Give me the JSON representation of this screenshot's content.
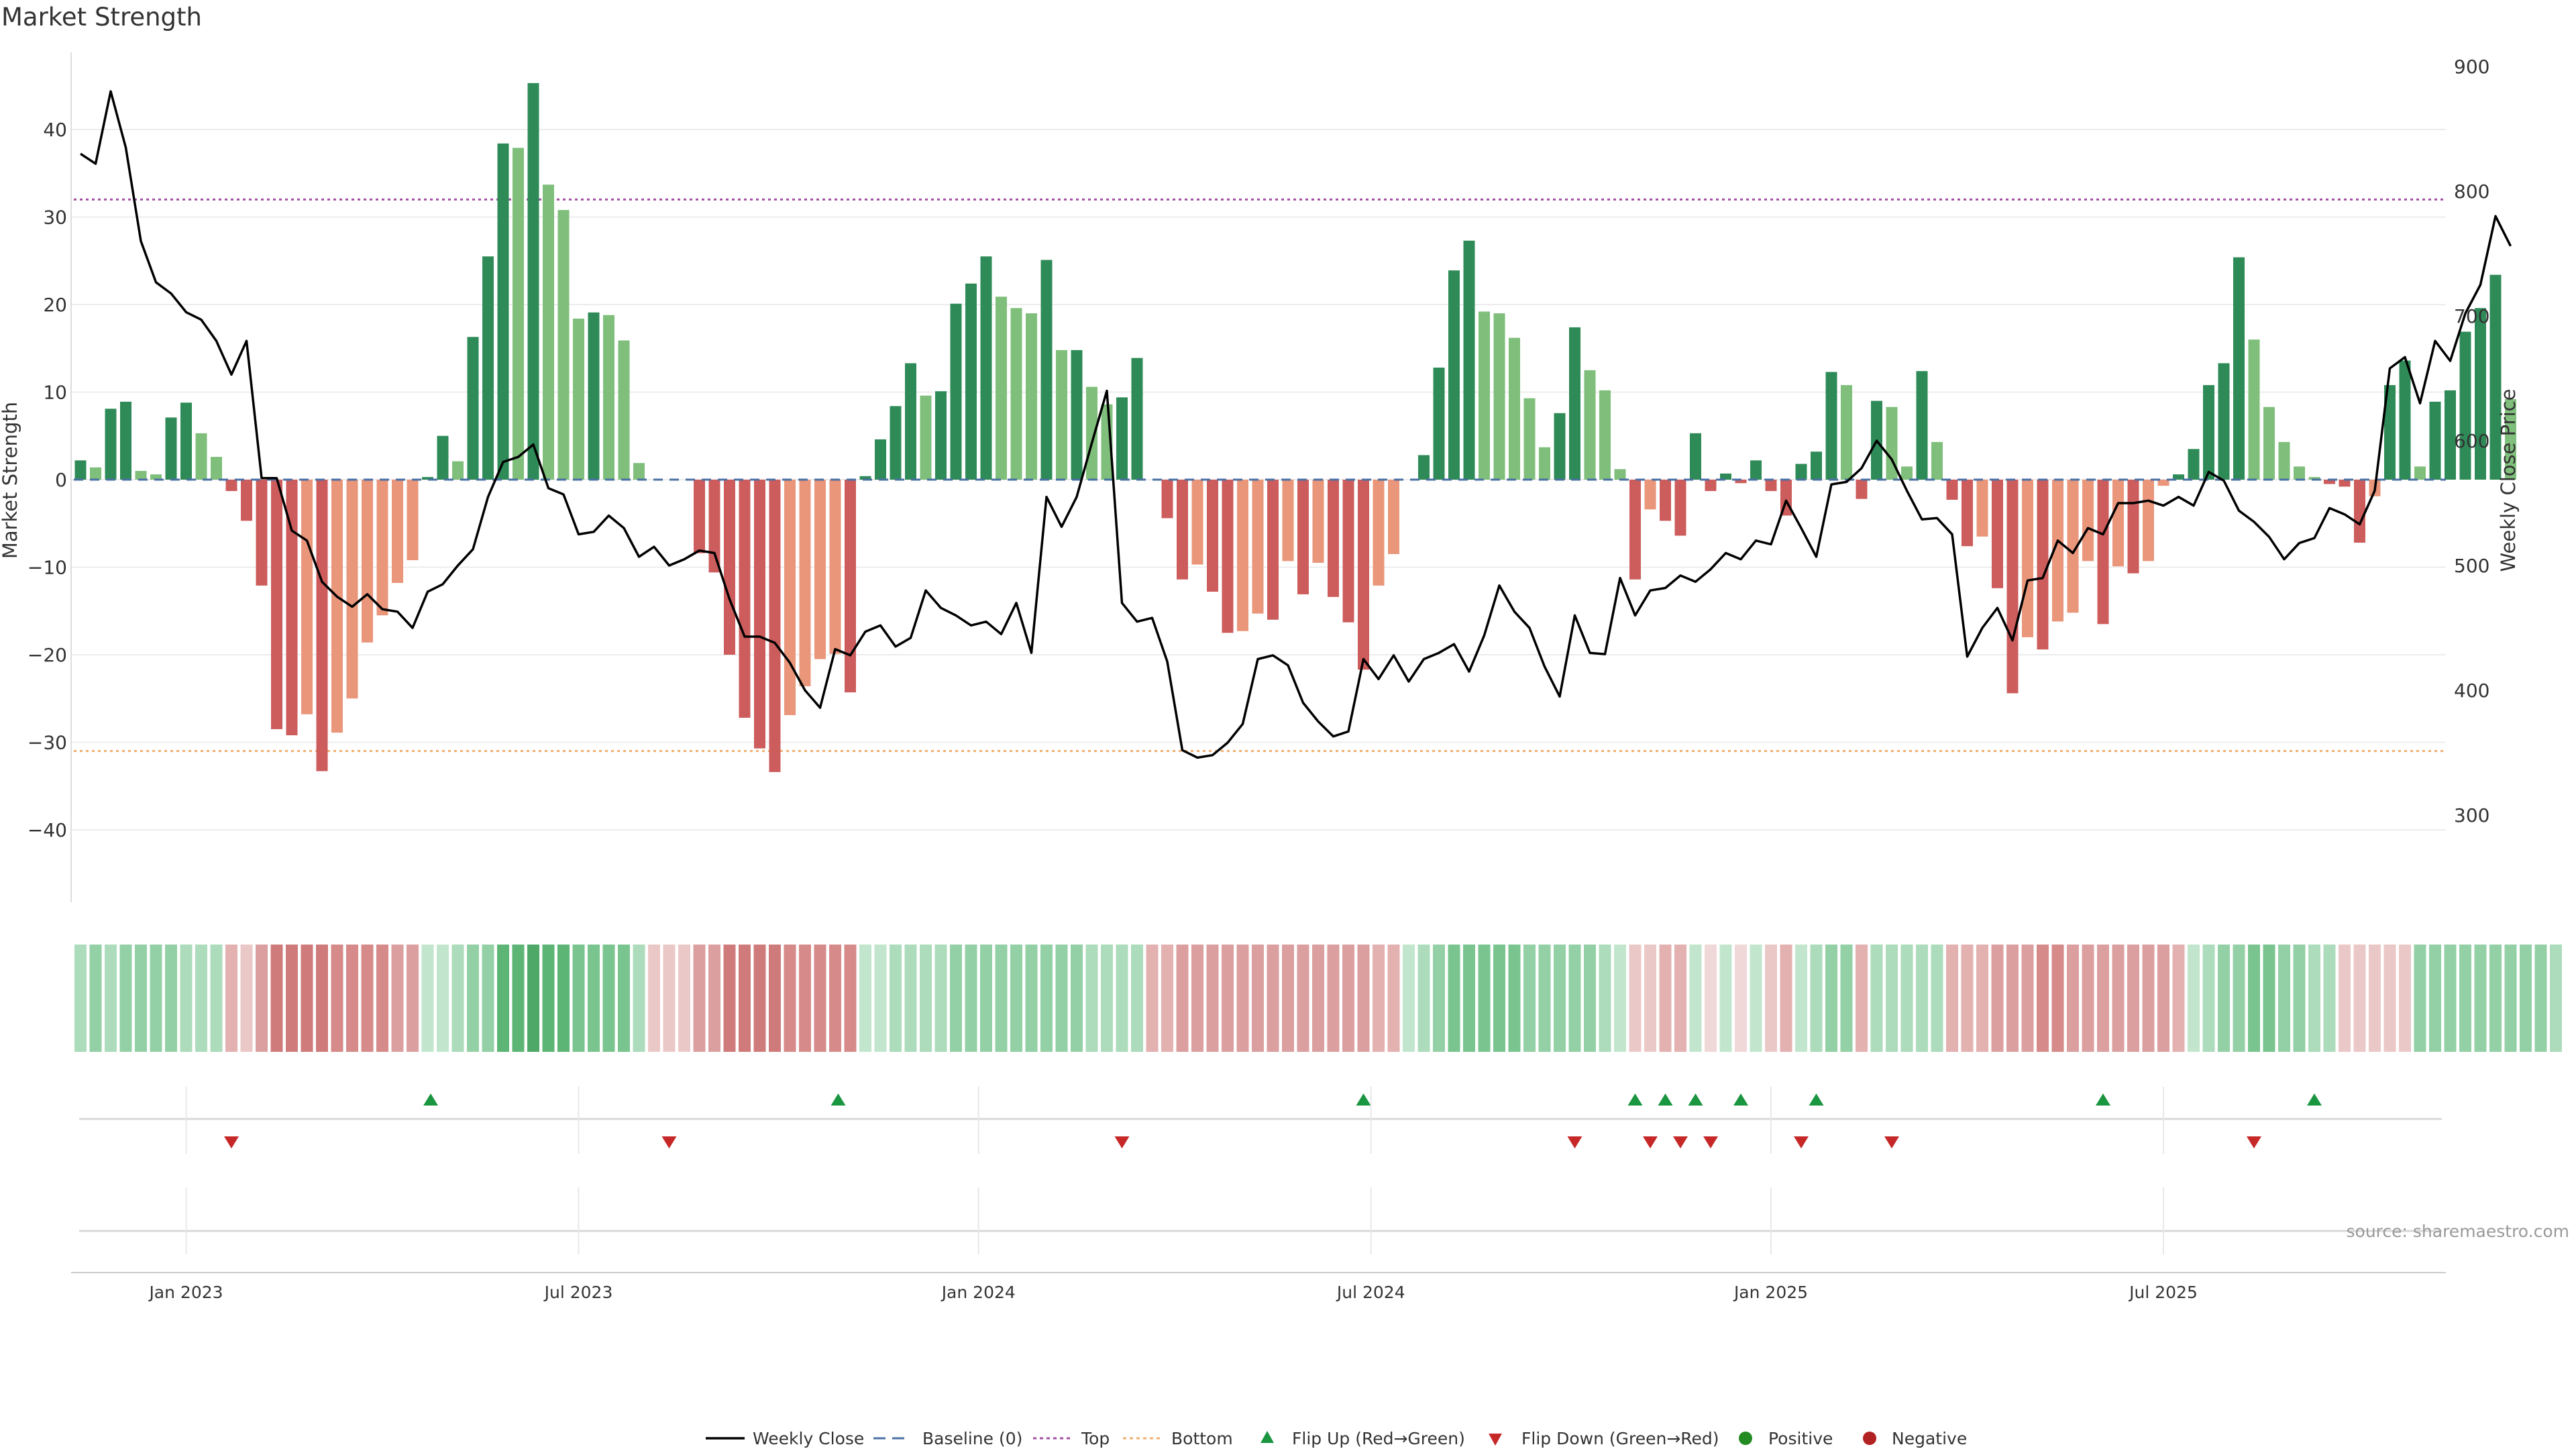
{
  "chart_data": {
    "type": "bar+line",
    "title": "Market Strength",
    "ylabel_left": "Market Strength",
    "ylabel_right": "Weekly Close Price",
    "ylim_left": [
      -48,
      46
    ],
    "ylim_right": [
      224,
      900
    ],
    "left_ticks": [
      {
        "value": 40,
        "label": "40"
      },
      {
        "value": 30,
        "label": "30"
      },
      {
        "value": 20,
        "label": "20"
      },
      {
        "value": 10,
        "label": "10"
      },
      {
        "value": 0,
        "label": "0"
      },
      {
        "value": -10,
        "label": "−10"
      },
      {
        "value": -20,
        "label": "−20"
      },
      {
        "value": -30,
        "label": "−30"
      },
      {
        "value": -40,
        "label": "−40"
      }
    ],
    "right_ticks": [
      {
        "value": 900,
        "label": "900"
      },
      {
        "value": 800,
        "label": "800"
      },
      {
        "value": 700,
        "label": "700"
      },
      {
        "value": 600,
        "label": "600"
      },
      {
        "value": 500,
        "label": "500"
      },
      {
        "value": 400,
        "label": "400"
      },
      {
        "value": 300,
        "label": "300"
      }
    ],
    "top_line": 32,
    "bottom_line": -31,
    "x_ticks": [
      {
        "week": 7,
        "label": "Jan 2023"
      },
      {
        "week": 33,
        "label": "Jul 2023"
      },
      {
        "week": 59.5,
        "label": "Jan 2024"
      },
      {
        "week": 85.5,
        "label": "Jul 2024"
      },
      {
        "week": 112,
        "label": "Jan 2025"
      },
      {
        "week": 138,
        "label": "Jul 2025"
      }
    ],
    "strength": [
      2.2,
      1.4,
      8.1,
      8.9,
      1.0,
      0.6,
      7.1,
      8.8,
      5.3,
      2.6,
      -1.3,
      -4.7,
      -12.1,
      -28.5,
      -29.2,
      -26.8,
      -33.3,
      -28.9,
      -25.0,
      -18.6,
      -15.5,
      -11.8,
      -9.2,
      0.3,
      5.0,
      2.1,
      16.3,
      25.5,
      38.4,
      37.9,
      45.3,
      33.7,
      30.8,
      18.4,
      19.1,
      18.8,
      15.9,
      1.9,
      0,
      0,
      0,
      -8.4,
      -10.6,
      -20.0,
      -27.2,
      -30.7,
      -33.4,
      -26.9,
      -23.6,
      -20.5,
      -19.9,
      -24.3,
      0.4,
      4.6,
      8.4,
      13.3,
      9.6,
      10.1,
      20.1,
      22.4,
      25.5,
      20.9,
      19.6,
      19.0,
      25.1,
      14.8,
      14.8,
      10.6,
      8.6,
      9.4,
      13.9,
      0,
      -4.4,
      -11.4,
      -9.7,
      -12.8,
      -17.5,
      -17.3,
      -15.3,
      -16.0,
      -9.3,
      -13.1,
      -9.5,
      -13.4,
      -16.3,
      -21.7,
      -12.1,
      -8.5,
      0,
      2.8,
      12.8,
      23.9,
      27.3,
      19.2,
      19.0,
      16.2,
      9.3,
      3.7,
      7.6,
      17.4,
      12.5,
      10.2,
      1.2,
      -11.4,
      -3.4,
      -4.7,
      -6.4,
      5.3,
      -1.3,
      0.7,
      -0.4,
      2.2,
      -1.3,
      -4.1,
      1.8,
      3.2,
      12.3,
      10.8,
      -2.2,
      9.0,
      8.3,
      1.5,
      12.4,
      4.3,
      -2.3,
      -7.6,
      -6.5,
      -12.4,
      -24.4,
      -18.0,
      -19.4,
      -16.2,
      -15.2,
      -9.3,
      -16.5,
      -9.9,
      -10.7,
      -9.3,
      -0.7,
      0.6,
      3.5,
      10.8,
      13.3,
      25.4,
      16.0,
      8.3,
      4.3,
      1.5,
      0.3,
      -0.5,
      -0.8,
      -7.2,
      -1.9,
      10.8,
      13.6,
      1.5,
      8.9,
      10.2,
      16.9,
      19.6,
      23.4,
      9.2
    ],
    "weekly_close": [
      830,
      822,
      880,
      835,
      760,
      727,
      718,
      703,
      697,
      680,
      653,
      680,
      570,
      570,
      528,
      520,
      487,
      475,
      467,
      477,
      465,
      463,
      450,
      479,
      485,
      500,
      513,
      555,
      583,
      587,
      597,
      562,
      557,
      525,
      527,
      540,
      530,
      507,
      515,
      500,
      505,
      512,
      510,
      473,
      443,
      443,
      438,
      422,
      400,
      386,
      433,
      428,
      447,
      452,
      435,
      442,
      480,
      466,
      460,
      452,
      455,
      445,
      470,
      430,
      555,
      531,
      555,
      598,
      640,
      470,
      455,
      458,
      423,
      352,
      346,
      348,
      358,
      373,
      425,
      428,
      420,
      390,
      375,
      363,
      367,
      425,
      409,
      428,
      407,
      425,
      430,
      437,
      415,
      444,
      484,
      463,
      450,
      419,
      395,
      460,
      430,
      429,
      490,
      460,
      480,
      482,
      492,
      487,
      497,
      510,
      505,
      520,
      517,
      552,
      530,
      507,
      565,
      567,
      578,
      600,
      585,
      560,
      537,
      538,
      525,
      427,
      450,
      466,
      440,
      488,
      490,
      520,
      510,
      530,
      525,
      550,
      550,
      552,
      548,
      555,
      548,
      575,
      568,
      544,
      535,
      523,
      505,
      518,
      522,
      546,
      541,
      533,
      560,
      658,
      667,
      630,
      680,
      664,
      702,
      725,
      780,
      756
    ]
  },
  "heat_levels": [
    3,
    4,
    3,
    4,
    4,
    4,
    4,
    3,
    3,
    3,
    -3,
    -2,
    -4,
    -6,
    -6,
    -6,
    -6,
    -5,
    -5,
    -5,
    -5,
    -4,
    -4,
    2,
    2,
    3,
    4,
    4,
    6,
    6,
    7,
    6,
    6,
    5,
    5,
    5,
    5,
    3,
    -2,
    -2,
    -2,
    -4,
    -4,
    -6,
    -6,
    -6,
    -6,
    -5,
    -5,
    -5,
    -5,
    -5,
    2,
    2,
    3,
    3,
    3,
    3,
    4,
    4,
    4,
    4,
    4,
    4,
    4,
    4,
    4,
    3,
    3,
    3,
    3,
    -3,
    -3,
    -4,
    -4,
    -4,
    -4,
    -4,
    -4,
    -4,
    -4,
    -4,
    -4,
    -4,
    -4,
    -4,
    -3,
    -3,
    2,
    3,
    4,
    5,
    5,
    5,
    5,
    5,
    4,
    4,
    4,
    4,
    4,
    3,
    2,
    -2,
    -2,
    -3,
    -3,
    2,
    -1,
    2,
    -1,
    2,
    -2,
    -3,
    2,
    3,
    4,
    4,
    -3,
    3,
    3,
    3,
    3,
    3,
    -3,
    -3,
    -3,
    -4,
    -4,
    -4,
    -5,
    -5,
    -4,
    -4,
    -4,
    -4,
    -4,
    -4,
    -4,
    -3,
    2,
    3,
    4,
    4,
    5,
    5,
    4,
    4,
    3,
    3,
    -2,
    -2,
    -2,
    -2,
    -2,
    4,
    4,
    4,
    4,
    4,
    4,
    4,
    4,
    4,
    3
  ],
  "flip_up_weeks": [
    23.2,
    50.2,
    85,
    103,
    105,
    107,
    110,
    115,
    134,
    148
  ],
  "flip_down_weeks": [
    10,
    39,
    69,
    99,
    104,
    106,
    108,
    114,
    120,
    144
  ],
  "colors": {
    "bar_strong_up": "#2e8b57",
    "bar_weak_up": "#7fbf7b",
    "bar_strong_down": "#cd5c5c",
    "bar_weak_down": "#e9967a",
    "line": "#000000",
    "top_line": "#a050a0",
    "bottom_line": "#f0b070",
    "baseline": "#4a6fa5",
    "flip_up": "#1a9641",
    "flip_down": "#c62828",
    "positive": "#228b22",
    "negative": "#b22222"
  },
  "source_text": "source: sharemaestro.com",
  "legend": {
    "weekly_close": "Weekly Close",
    "baseline": "Baseline (0)",
    "top": "Top",
    "bottom": "Bottom",
    "flip_up": "Flip Up (Red→Green)",
    "flip_down": "Flip Down (Green→Red)",
    "positive": "Positive",
    "negative": "Negative"
  }
}
